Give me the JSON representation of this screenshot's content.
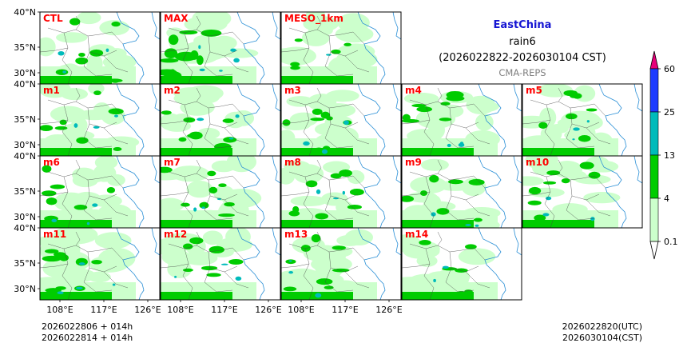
{
  "chart_data": {
    "type": "heatmap",
    "region": "EastChina",
    "variable": "rain6",
    "period": "(2026022822-2026030104 CST)",
    "source": "CMA-REPS",
    "panels": [
      {
        "label": "CTL",
        "coverage": 0.45,
        "heavy": 0.45
      },
      {
        "label": "MAX",
        "coverage": 0.65,
        "heavy": 0.75
      },
      {
        "label": "MESO_1km",
        "coverage": 0.55,
        "heavy": 0.2
      },
      {
        "label": "m1",
        "coverage": 0.45,
        "heavy": 0.45
      },
      {
        "label": "m2",
        "coverage": 0.5,
        "heavy": 0.5
      },
      {
        "label": "m3",
        "coverage": 0.45,
        "heavy": 0.45
      },
      {
        "label": "m4",
        "coverage": 0.6,
        "heavy": 0.55
      },
      {
        "label": "m5",
        "coverage": 0.5,
        "heavy": 0.5
      },
      {
        "label": "m6",
        "coverage": 0.45,
        "heavy": 0.45
      },
      {
        "label": "m7",
        "coverage": 0.55,
        "heavy": 0.5
      },
      {
        "label": "m8",
        "coverage": 0.45,
        "heavy": 0.45
      },
      {
        "label": "m9",
        "coverage": 0.5,
        "heavy": 0.5
      },
      {
        "label": "m10",
        "coverage": 0.45,
        "heavy": 0.45
      },
      {
        "label": "m11",
        "coverage": 0.6,
        "heavy": 0.6
      },
      {
        "label": "m12",
        "coverage": 0.5,
        "heavy": 0.45
      },
      {
        "label": "m13",
        "coverage": 0.6,
        "heavy": 0.55
      },
      {
        "label": "m14",
        "coverage": 0.45,
        "heavy": 0.4
      }
    ],
    "lat_ticks": [
      "40°N",
      "35°N",
      "30°N"
    ],
    "lon_ticks": [
      "108°E",
      "117°E",
      "126°E"
    ],
    "colorbar": {
      "levels": [
        "0.1",
        "4",
        "13",
        "25",
        "60"
      ],
      "colors": [
        "#ccffcc",
        "#00cc00",
        "#00bbbb",
        "#1e3cff"
      ],
      "under_color": "#ffffff",
      "over_color": "#e8007a"
    },
    "footer_left": [
      "2026022806  +  014h",
      "2026022814  +  014h"
    ],
    "footer_right": [
      "2026022820(UTC)",
      "2026030104(CST)"
    ]
  }
}
